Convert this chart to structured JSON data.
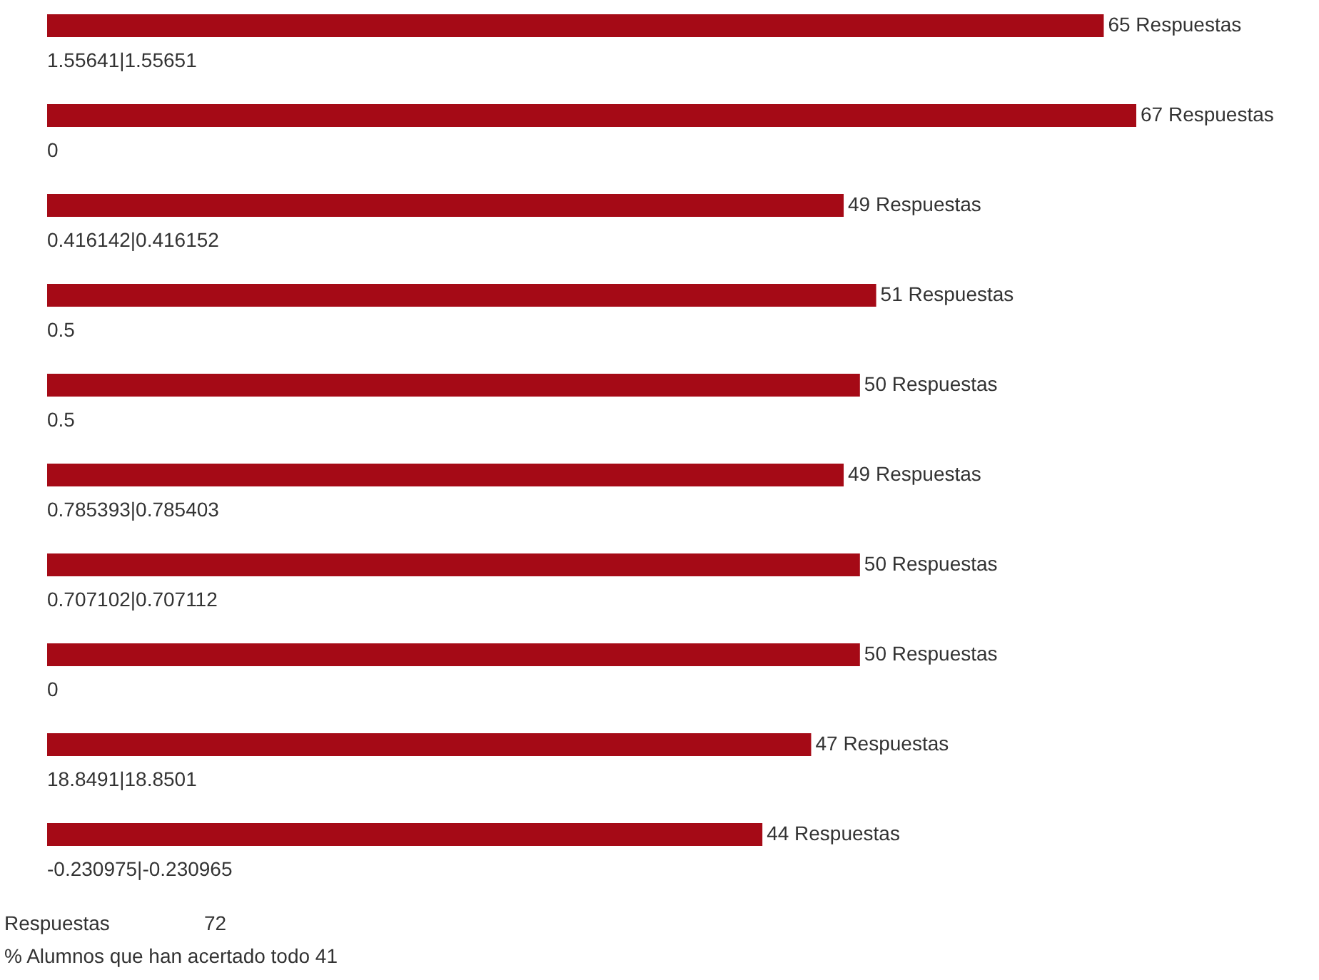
{
  "chart_data": {
    "type": "bar",
    "orientation": "horizontal",
    "color": "#a50a16",
    "categories": [
      "1.55641|1.55651",
      "0",
      "0.416142|0.416152",
      "0.5",
      "0.5",
      "0.785393|0.785403",
      "0.707102|0.707112",
      "0",
      "18.8491|18.8501",
      "-0.230975|-0.230965"
    ],
    "values": [
      65,
      67,
      49,
      51,
      50,
      49,
      50,
      50,
      47,
      44
    ],
    "value_labels": [
      "65 Respuestas",
      "67 Respuestas",
      "49 Respuestas",
      "51 Respuestas",
      "50 Respuestas",
      "49 Respuestas",
      "50 Respuestas",
      "50 Respuestas",
      "47 Respuestas",
      "44 Respuestas"
    ],
    "annotations": [
      "Respuestas",
      "72",
      "% Alumnos que han acertado todo 41"
    ]
  }
}
